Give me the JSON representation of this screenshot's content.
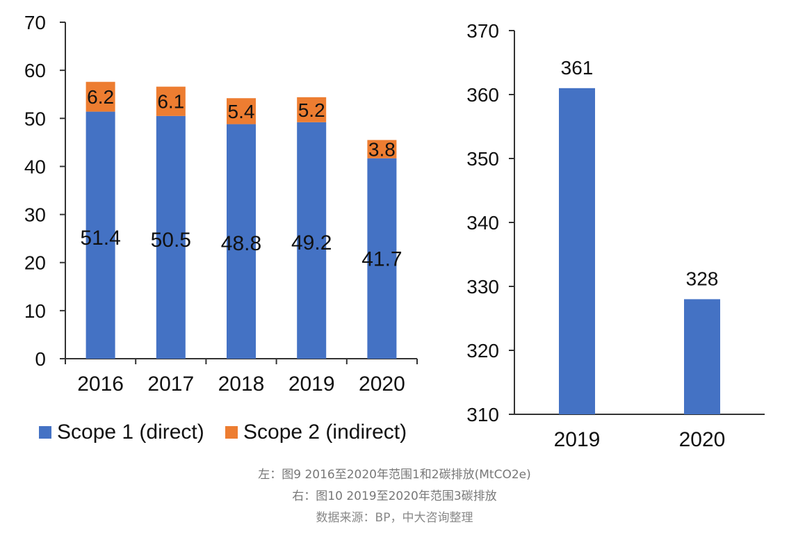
{
  "chart_data": [
    {
      "type": "bar",
      "stacked": true,
      "categories": [
        "2016",
        "2017",
        "2018",
        "2019",
        "2020"
      ],
      "series": [
        {
          "name": "Scope 1 (direct)",
          "values": [
            51.4,
            50.5,
            48.8,
            49.2,
            41.7
          ],
          "color": "#4472C4"
        },
        {
          "name": "Scope 2 (indirect)",
          "values": [
            6.2,
            6.1,
            5.4,
            5.2,
            3.8
          ],
          "color": "#ED7D31"
        }
      ],
      "ylim": [
        0,
        70
      ],
      "yticks": [
        "0",
        "10",
        "20",
        "30",
        "40",
        "50",
        "60",
        "70"
      ],
      "legend": "bottom",
      "grid": false
    },
    {
      "type": "bar",
      "categories": [
        "2019",
        "2020"
      ],
      "values": [
        361,
        328
      ],
      "color": "#4472C4",
      "ylim": [
        310,
        370
      ],
      "yticks": [
        "310",
        "320",
        "330",
        "340",
        "350",
        "360",
        "370"
      ],
      "grid": false
    }
  ],
  "captions": {
    "line1": "左：图9  2016至2020年范围1和2碳排放(MtCO2e)",
    "line2": "右：图10  2019至2020年范围3碳排放",
    "line3": "数据来源：BP，中大咨询整理"
  }
}
